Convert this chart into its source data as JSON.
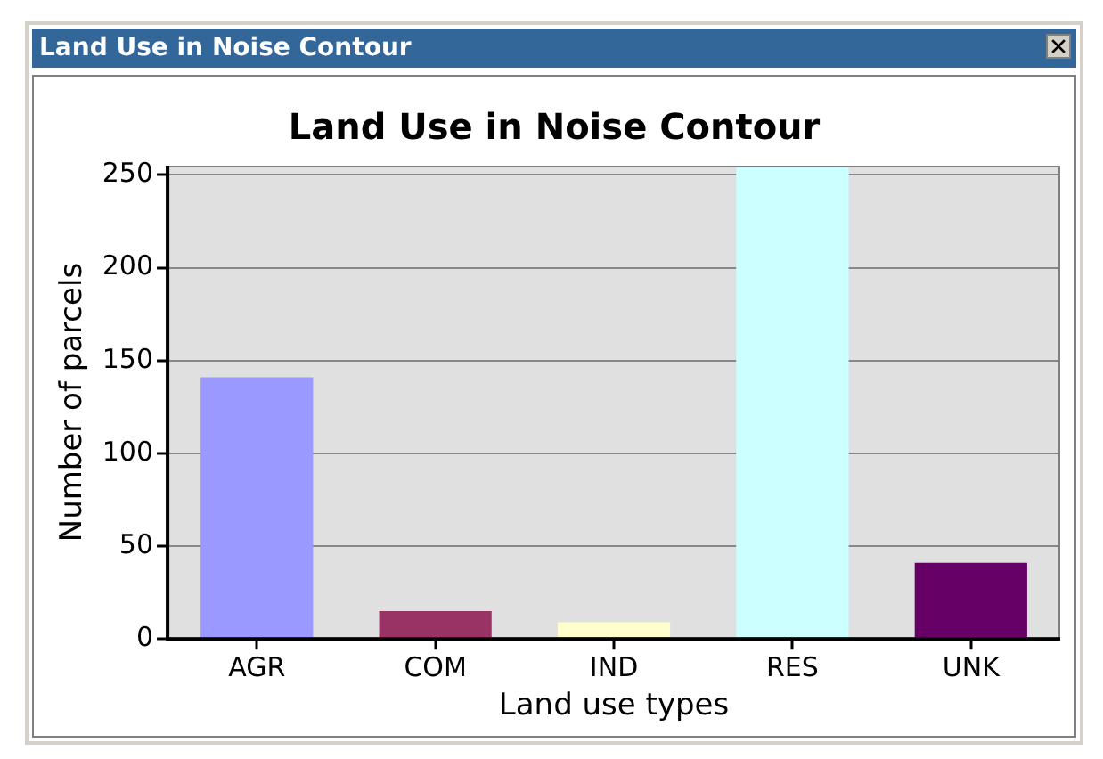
{
  "chart_data": {
    "type": "bar",
    "title": "Land Use in Noise Contour",
    "annotations": [
      "Land Use in Noise Contour"
    ],
    "xlabel": "Land use types",
    "ylabel": "Number of parcels",
    "categories": [
      "AGR",
      "COM",
      "IND",
      "RES",
      "UNK"
    ],
    "values": [
      141,
      15,
      9,
      255,
      41
    ],
    "colors": [
      "#9999ff",
      "#993366",
      "#ffffcc",
      "#ccffff",
      "#660066"
    ],
    "ylim": [
      0,
      255
    ],
    "yticks": [
      0,
      50,
      100,
      150,
      200,
      250
    ],
    "grid": "y",
    "legend": false
  }
}
